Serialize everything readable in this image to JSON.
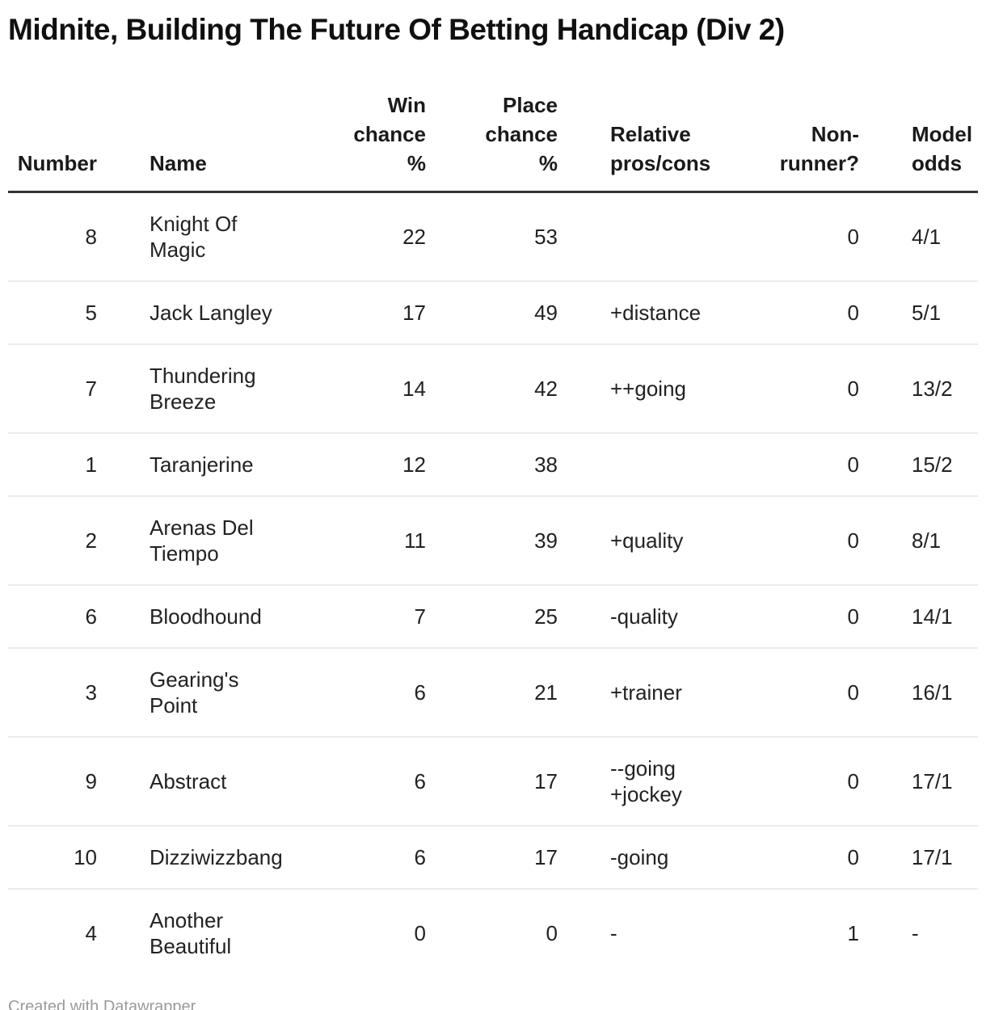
{
  "title": "Midnite, Building The Future Of Betting Handicap (Div 2)",
  "attribution": "Created with Datawrapper",
  "colors": {
    "background": "#ffffff",
    "title_text": "#101010",
    "header_text": "#1a1a1a",
    "body_text": "#222222",
    "header_border": "#333333",
    "row_divider": "#ebebeb",
    "attribution_text": "#9a9a9a"
  },
  "table": {
    "header": [
      {
        "id": "number",
        "lines": [
          "Number"
        ],
        "align": "right"
      },
      {
        "id": "name",
        "lines": [
          "Name"
        ],
        "align": "left"
      },
      {
        "id": "win",
        "lines": [
          "Win",
          "chance",
          "%"
        ],
        "align": "right"
      },
      {
        "id": "place",
        "lines": [
          "Place",
          "chance",
          "%"
        ],
        "align": "right"
      },
      {
        "id": "pros",
        "lines": [
          "Relative",
          "pros/cons"
        ],
        "align": "left"
      },
      {
        "id": "nonrunner",
        "lines": [
          "Non-",
          "runner?"
        ],
        "align": "right"
      },
      {
        "id": "odds",
        "lines": [
          "Model",
          "odds"
        ],
        "align": "left"
      }
    ],
    "rows": [
      {
        "number": "8",
        "name": [
          "Knight Of",
          "Magic"
        ],
        "win": "22",
        "place": "53",
        "pros": [],
        "nonrunner": "0",
        "odds": "4/1"
      },
      {
        "number": "5",
        "name": [
          "Jack Langley"
        ],
        "win": "17",
        "place": "49",
        "pros": [
          "+distance"
        ],
        "nonrunner": "0",
        "odds": "5/1"
      },
      {
        "number": "7",
        "name": [
          "Thundering",
          "Breeze"
        ],
        "win": "14",
        "place": "42",
        "pros": [
          "++going"
        ],
        "nonrunner": "0",
        "odds": "13/2"
      },
      {
        "number": "1",
        "name": [
          "Taranjerine"
        ],
        "win": "12",
        "place": "38",
        "pros": [],
        "nonrunner": "0",
        "odds": "15/2"
      },
      {
        "number": "2",
        "name": [
          "Arenas Del",
          "Tiempo"
        ],
        "win": "11",
        "place": "39",
        "pros": [
          "+quality"
        ],
        "nonrunner": "0",
        "odds": "8/1"
      },
      {
        "number": "6",
        "name": [
          "Bloodhound"
        ],
        "win": "7",
        "place": "25",
        "pros": [
          "-quality"
        ],
        "nonrunner": "0",
        "odds": "14/1"
      },
      {
        "number": "3",
        "name": [
          "Gearing's",
          "Point"
        ],
        "win": "6",
        "place": "21",
        "pros": [
          "+trainer"
        ],
        "nonrunner": "0",
        "odds": "16/1"
      },
      {
        "number": "9",
        "name": [
          "Abstract"
        ],
        "win": "6",
        "place": "17",
        "pros": [
          "--going",
          "+jockey"
        ],
        "nonrunner": "0",
        "odds": "17/1"
      },
      {
        "number": "10",
        "name": [
          "Dizziwizzbang"
        ],
        "win": "6",
        "place": "17",
        "pros": [
          "-going"
        ],
        "nonrunner": "0",
        "odds": "17/1"
      },
      {
        "number": "4",
        "name": [
          "Another",
          "Beautiful"
        ],
        "win": "0",
        "place": "0",
        "pros": [
          "-"
        ],
        "nonrunner": "1",
        "odds": "-"
      }
    ]
  },
  "chart_data": {
    "type": "table",
    "title": "Midnite, Building The Future Of Betting Handicap (Div 2)",
    "columns": [
      "Number",
      "Name",
      "Win chance %",
      "Place chance %",
      "Relative pros/cons",
      "Non-runner?",
      "Model odds"
    ],
    "rows": [
      [
        8,
        "Knight Of Magic",
        22,
        53,
        "",
        0,
        "4/1"
      ],
      [
        5,
        "Jack Langley",
        17,
        49,
        "+distance",
        0,
        "5/1"
      ],
      [
        7,
        "Thundering Breeze",
        14,
        42,
        "++going",
        0,
        "13/2"
      ],
      [
        1,
        "Taranjerine",
        12,
        38,
        "",
        0,
        "15/2"
      ],
      [
        2,
        "Arenas Del Tiempo",
        11,
        39,
        "+quality",
        0,
        "8/1"
      ],
      [
        6,
        "Bloodhound",
        7,
        25,
        "-quality",
        0,
        "14/1"
      ],
      [
        3,
        "Gearing's Point",
        6,
        21,
        "+trainer",
        0,
        "16/1"
      ],
      [
        9,
        "Abstract",
        6,
        17,
        "--going +jockey",
        0,
        "17/1"
      ],
      [
        10,
        "Dizziwizzbang",
        6,
        17,
        "-going",
        0,
        "17/1"
      ],
      [
        4,
        "Another Beautiful",
        0,
        0,
        "-",
        1,
        "-"
      ]
    ],
    "layout": {
      "grid": "horizontal row dividers",
      "header_alignment": "numeric columns right-aligned, text columns left-aligned"
    },
    "attribution": "Created with Datawrapper"
  }
}
